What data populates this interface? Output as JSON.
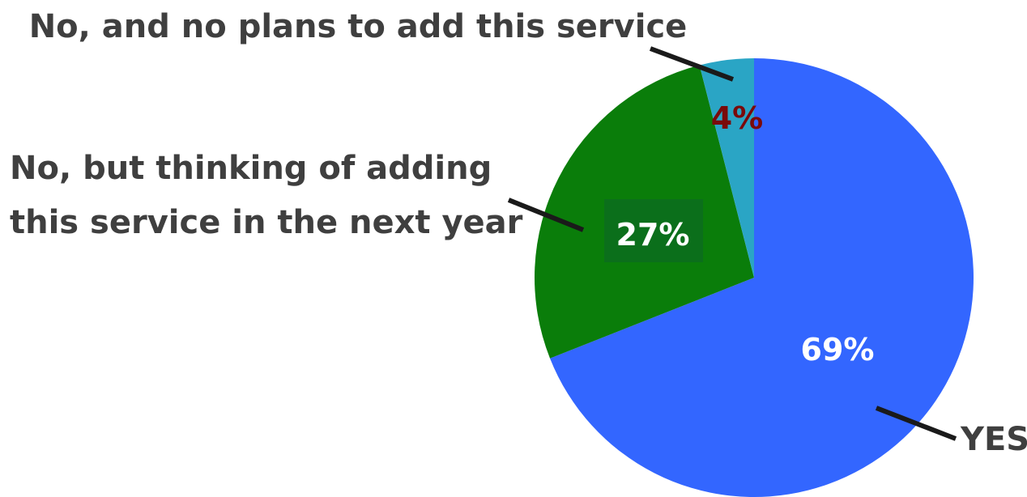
{
  "chart_data": {
    "type": "pie",
    "slices": [
      {
        "label": "YES",
        "value": 69,
        "value_label": "69%",
        "color": "#3366ff",
        "value_label_color": "#ffffff"
      },
      {
        "label": "No, but thinking of adding this service in the next year",
        "value": 27,
        "value_label": "27%",
        "color": "#0a7d0a",
        "value_label_color": "#ffffff"
      },
      {
        "label": "No, and no plans to add this service",
        "value": 4,
        "value_label": "4%",
        "color": "#2aa5c5",
        "value_label_color": "#7a0a0a"
      }
    ],
    "start_angle_deg": 0,
    "direction": "clockwise",
    "leader_line_color": "#1a1a1a"
  }
}
